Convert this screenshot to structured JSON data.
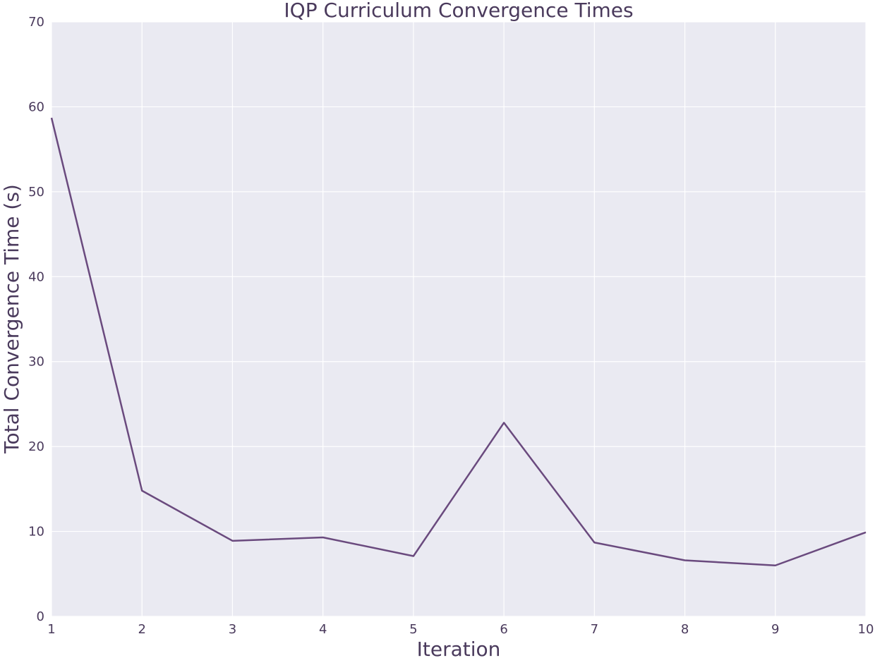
{
  "chart_data": {
    "type": "line",
    "title": "IQP Curriculum Convergence Times",
    "xlabel": "Iteration",
    "ylabel": "Total Convergence Time (s)",
    "x": [
      1,
      2,
      3,
      4,
      5,
      6,
      7,
      8,
      9,
      10
    ],
    "series": [
      {
        "values": [
          58.7,
          14.8,
          8.9,
          9.3,
          7.1,
          22.8,
          8.7,
          6.6,
          6.0,
          9.9
        ]
      }
    ],
    "xlim": [
      1,
      10
    ],
    "ylim": [
      0,
      70
    ],
    "xticks": [
      1,
      2,
      3,
      4,
      5,
      6,
      7,
      8,
      9,
      10
    ],
    "yticks": [
      0,
      10,
      20,
      30,
      40,
      50,
      60,
      70
    ],
    "grid": true,
    "colors": {
      "plot_background": "#eaeaf2",
      "line": "#6a4a7e",
      "text": "#4a3a5c"
    }
  }
}
